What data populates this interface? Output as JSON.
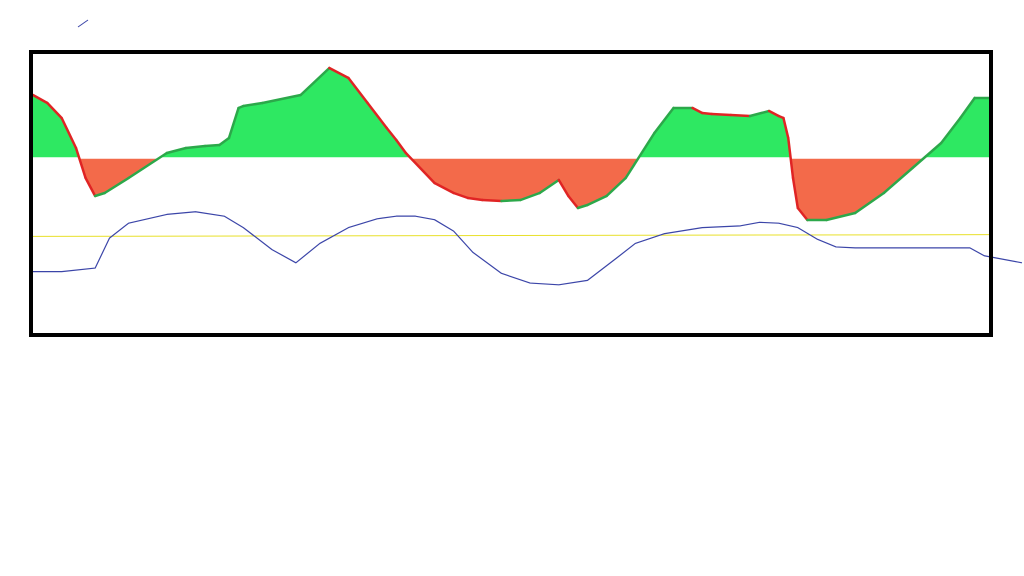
{
  "chart_data": {
    "type": "area",
    "title": "",
    "xlabel": "",
    "ylabel": "",
    "baseline": 0,
    "xlim": [
      0,
      100
    ],
    "colors": {
      "positive_fill": "#2EE862",
      "negative_fill": "#F36A4A",
      "rising_edge": "#2CA84A",
      "falling_edge": "#E02424",
      "secondary_line": "#3B45A8",
      "reference_line": "#E8E02A",
      "frame": "#000000"
    },
    "series": [
      {
        "role": "primary-area",
        "x": [
          0,
          1.5,
          3,
          4.5,
          5.5,
          6.5,
          7.5,
          10,
          14,
          16,
          18,
          19.5,
          20.5,
          21.5,
          22,
          24,
          28,
          31,
          33,
          35,
          37,
          38,
          39,
          42,
          44,
          45.5,
          47,
          49,
          51,
          53,
          55,
          56,
          57,
          58,
          60,
          62,
          65,
          67,
          69,
          70,
          71,
          73,
          75,
          77,
          78,
          78.5,
          79,
          79.5,
          80,
          81,
          83,
          86,
          89,
          92,
          95,
          97,
          98.5,
          100
        ],
        "y": [
          63,
          55,
          40,
          10,
          -20,
          -38,
          -35,
          -20,
          5,
          10,
          12,
          13,
          20,
          50,
          52,
          55,
          63,
          90,
          80,
          55,
          30,
          18,
          5,
          -25,
          -35,
          -40,
          -42,
          -43,
          -42,
          -35,
          -22,
          -38,
          -50,
          -47,
          -38,
          -20,
          25,
          50,
          50,
          45,
          44,
          43,
          42,
          47,
          42,
          40,
          20,
          -20,
          -50,
          -62,
          -62,
          -55,
          -35,
          -10,
          15,
          40,
          60,
          60
        ]
      },
      {
        "role": "secondary-line",
        "x": [
          0,
          3,
          6.5,
          8,
          10,
          14,
          17,
          20,
          22,
          25,
          27.5,
          30,
          33,
          36,
          38,
          40,
          42,
          44,
          46,
          49,
          52,
          55,
          58,
          61,
          63,
          66,
          70,
          74,
          76,
          78,
          80,
          82,
          84,
          86,
          88,
          92,
          96,
          98,
          99.5,
          100
        ],
        "y": [
          30,
          30,
          34,
          68,
          85,
          95,
          98,
          93,
          80,
          55,
          40,
          62,
          80,
          90,
          93,
          93,
          89,
          76,
          52,
          28,
          17,
          15,
          20,
          45,
          62,
          73,
          80,
          82,
          86,
          85,
          80,
          67,
          58,
          57,
          57,
          57,
          57,
          57,
          48,
          40
        ]
      },
      {
        "role": "reference-line",
        "x": [
          0,
          100
        ],
        "y": [
          70,
          72
        ]
      }
    ]
  }
}
